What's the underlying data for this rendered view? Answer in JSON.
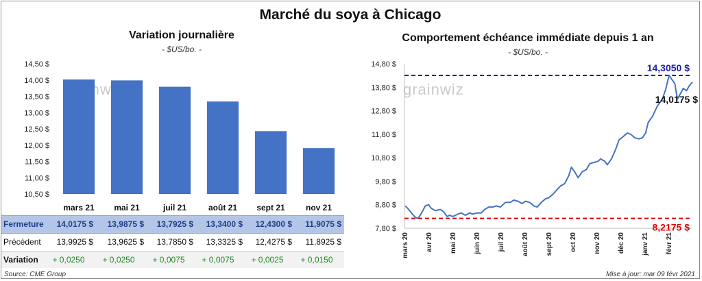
{
  "title": "Marché du soya à Chicago",
  "left_chart": {
    "subtitle": "Variation journalière",
    "unit": "- $US/bo. -"
  },
  "right_chart": {
    "subtitle": "Comportement échéance immédiate depuis 1 an",
    "unit": "- $US/bo. -"
  },
  "watermark": "grainwiz",
  "table": {
    "rows": [
      {
        "label": "Fermeture",
        "values": [
          "14,0175 $",
          "13,9875 $",
          "13,7925 $",
          "13,3400 $",
          "12,4300 $",
          "11,9075 $"
        ]
      },
      {
        "label": "Précédent",
        "values": [
          "13,9925 $",
          "13,9625 $",
          "13,7850 $",
          "13,3325 $",
          "12,4275 $",
          "11,8925 $"
        ]
      },
      {
        "label": "Variation",
        "values": [
          "+ 0,0250",
          "+ 0,0250",
          "+ 0,0075",
          "+ 0,0075",
          "+ 0,0025",
          "+ 0,0150"
        ]
      }
    ]
  },
  "footer": {
    "source": "Source: CME Group",
    "updated": "Mise à jour: mar 09 févr 2021"
  },
  "colors": {
    "bar": "#4472C4",
    "line": "#4472C4",
    "high_line": "#1F1FA8",
    "low_line": "#E00000",
    "positive": "#1E8C1E",
    "fermeture_band": "#B4C6E7",
    "variation_band": "#F2F2F2"
  },
  "chart_data": [
    {
      "type": "bar",
      "title": "Variation journalière",
      "categories": [
        "mars 21",
        "mai 21",
        "juil 21",
        "août 21",
        "sept 21",
        "nov 21"
      ],
      "values": [
        14.0175,
        13.9875,
        13.7925,
        13.34,
        12.43,
        11.9075
      ],
      "ylim": [
        10.5,
        14.5
      ],
      "yticks": [
        10.5,
        11.0,
        11.5,
        12.0,
        12.5,
        13.0,
        13.5,
        14.0,
        14.5
      ],
      "ytick_labels": [
        "10,50 $",
        "11,00 $",
        "11,50 $",
        "12,00 $",
        "12,50 $",
        "13,00 $",
        "13,50 $",
        "14,00 $",
        "14,50 $"
      ],
      "grid": false
    },
    {
      "type": "line",
      "title": "Comportement échéance immédiate depuis 1 an",
      "x_labels": [
        "mars 20",
        "avr 20",
        "mai 20",
        "juin 20",
        "juil 20",
        "août 20",
        "sept 20",
        "oct 20",
        "nov 20",
        "déc 20",
        "janv 21",
        "févr 21"
      ],
      "x_start": "2020-03-01",
      "x_end": "2021-02-09",
      "ylim": [
        7.8,
        14.8
      ],
      "yticks": [
        7.8,
        8.8,
        9.8,
        10.8,
        11.8,
        12.8,
        13.8,
        14.8
      ],
      "ytick_labels": [
        "7,80 $",
        "8,80 $",
        "9,80 $",
        "10,80 $",
        "11,80 $",
        "12,80 $",
        "13,80 $",
        "14,80 $"
      ],
      "series": [
        {
          "points": [
            [
              "2020-03-02",
              8.75
            ],
            [
              "2020-03-06",
              8.6
            ],
            [
              "2020-03-10",
              8.42
            ],
            [
              "2020-03-13",
              8.3
            ],
            [
              "2020-03-16",
              8.2175
            ],
            [
              "2020-03-19",
              8.3
            ],
            [
              "2020-03-23",
              8.55
            ],
            [
              "2020-03-26",
              8.75
            ],
            [
              "2020-03-30",
              8.8
            ],
            [
              "2020-04-02",
              8.65
            ],
            [
              "2020-04-07",
              8.55
            ],
            [
              "2020-04-13",
              8.6
            ],
            [
              "2020-04-17",
              8.5
            ],
            [
              "2020-04-21",
              8.3
            ],
            [
              "2020-04-24",
              8.35
            ],
            [
              "2020-04-28",
              8.3
            ],
            [
              "2020-05-04",
              8.4
            ],
            [
              "2020-05-08",
              8.45
            ],
            [
              "2020-05-13",
              8.35
            ],
            [
              "2020-05-18",
              8.45
            ],
            [
              "2020-05-22",
              8.4
            ],
            [
              "2020-05-27",
              8.45
            ],
            [
              "2020-06-01",
              8.45
            ],
            [
              "2020-06-05",
              8.6
            ],
            [
              "2020-06-10",
              8.7
            ],
            [
              "2020-06-15",
              8.7
            ],
            [
              "2020-06-19",
              8.75
            ],
            [
              "2020-06-24",
              8.7
            ],
            [
              "2020-06-30",
              8.9
            ],
            [
              "2020-07-06",
              8.9
            ],
            [
              "2020-07-10",
              9.0
            ],
            [
              "2020-07-15",
              8.95
            ],
            [
              "2020-07-20",
              8.85
            ],
            [
              "2020-07-24",
              8.95
            ],
            [
              "2020-07-29",
              8.9
            ],
            [
              "2020-08-03",
              8.75
            ],
            [
              "2020-08-07",
              8.7
            ],
            [
              "2020-08-12",
              8.9
            ],
            [
              "2020-08-17",
              9.05
            ],
            [
              "2020-08-21",
              9.1
            ],
            [
              "2020-08-26",
              9.25
            ],
            [
              "2020-08-31",
              9.45
            ],
            [
              "2020-09-04",
              9.6
            ],
            [
              "2020-09-09",
              9.7
            ],
            [
              "2020-09-14",
              10.05
            ],
            [
              "2020-09-17",
              10.4
            ],
            [
              "2020-09-21",
              10.2
            ],
            [
              "2020-09-25",
              9.95
            ],
            [
              "2020-09-30",
              10.2
            ],
            [
              "2020-10-05",
              10.3
            ],
            [
              "2020-10-09",
              10.55
            ],
            [
              "2020-10-14",
              10.6
            ],
            [
              "2020-10-19",
              10.65
            ],
            [
              "2020-10-22",
              10.75
            ],
            [
              "2020-10-27",
              10.65
            ],
            [
              "2020-10-30",
              10.5
            ],
            [
              "2020-11-04",
              10.75
            ],
            [
              "2020-11-09",
              11.15
            ],
            [
              "2020-11-13",
              11.55
            ],
            [
              "2020-11-18",
              11.7
            ],
            [
              "2020-11-23",
              11.85
            ],
            [
              "2020-11-27",
              11.8
            ],
            [
              "2020-12-02",
              11.65
            ],
            [
              "2020-12-07",
              11.6
            ],
            [
              "2020-12-11",
              11.65
            ],
            [
              "2020-12-15",
              11.85
            ],
            [
              "2020-12-18",
              12.3
            ],
            [
              "2020-12-23",
              12.55
            ],
            [
              "2020-12-29",
              13.0
            ],
            [
              "2021-01-04",
              13.3
            ],
            [
              "2021-01-08",
              13.7
            ],
            [
              "2021-01-12",
              14.305
            ],
            [
              "2021-01-15",
              14.15
            ],
            [
              "2021-01-19",
              13.95
            ],
            [
              "2021-01-22",
              13.3
            ],
            [
              "2021-01-26",
              13.55
            ],
            [
              "2021-01-29",
              13.75
            ],
            [
              "2021-02-02",
              13.65
            ],
            [
              "2021-02-05",
              13.85
            ],
            [
              "2021-02-09",
              14.0175
            ]
          ]
        }
      ],
      "annotations": [
        {
          "label": "14,3050 $",
          "value": 14.305
        },
        {
          "label": "14,0175 $",
          "value": 14.0175
        },
        {
          "label": "8,2175 $",
          "value": 8.2175
        }
      ]
    }
  ]
}
